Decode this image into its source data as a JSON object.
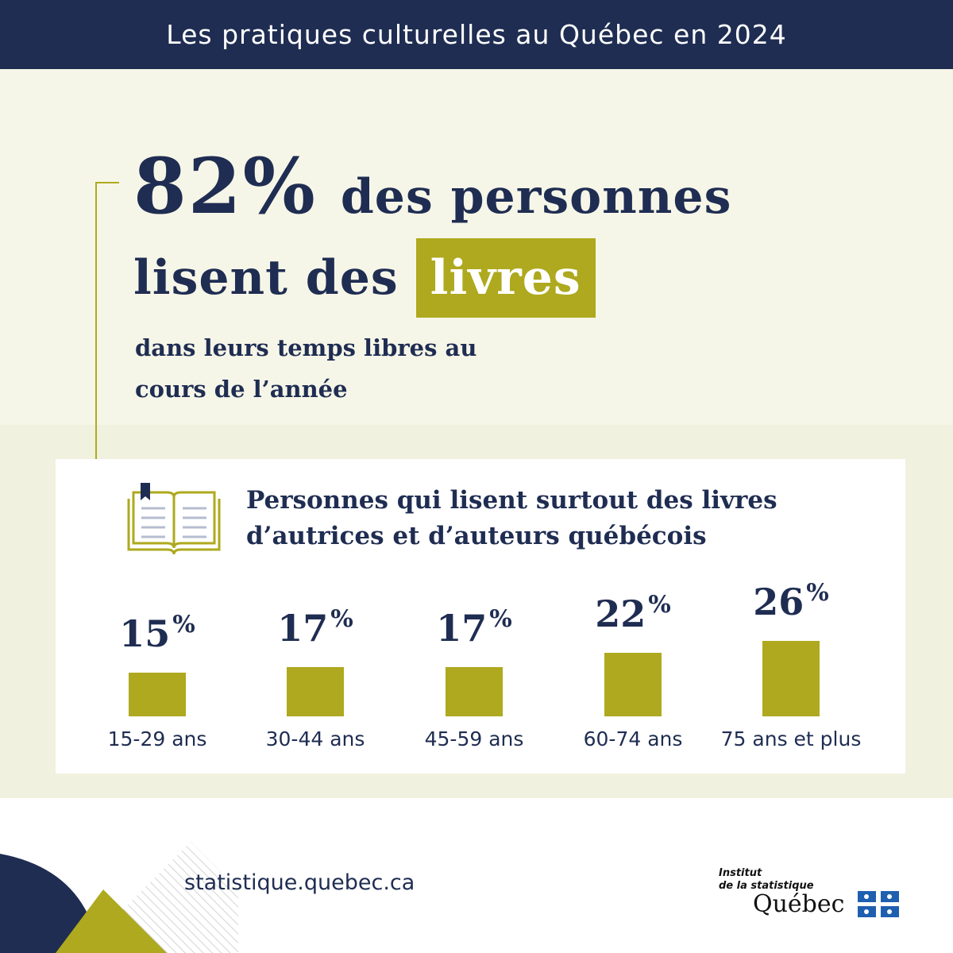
{
  "banner": {
    "title": "Les pratiques culturelles au Québec en 2024"
  },
  "hero": {
    "percent": "82%",
    "line1": "des personnes",
    "line2": "lisent des",
    "highlight": "livres",
    "sub_line1": "dans leurs temps libres au",
    "sub_line2": "cours de l’année"
  },
  "card": {
    "title_line1": "Personnes qui lisent surtout des livres",
    "title_line2": "d’autrices et d’auteurs québécois"
  },
  "chart_data": {
    "type": "bar",
    "title": "Personnes qui lisent surtout des livres d’autrices et d’auteurs québécois",
    "categories": [
      "15-29 ans",
      "30-44 ans",
      "45-59 ans",
      "60-74 ans",
      "75 ans et plus"
    ],
    "values": [
      15,
      17,
      17,
      22,
      26
    ],
    "value_labels": [
      "15",
      "17",
      "17",
      "22",
      "26"
    ],
    "unit": "%",
    "colors": {
      "bar": "#aea91e",
      "text": "#1f2d52"
    }
  },
  "footer": {
    "website": "statistique.quebec.ca",
    "logo_line1": "Institut",
    "logo_line2": "de la statistique",
    "logo_main": "Québec"
  },
  "colors": {
    "navy": "#1f2d52",
    "olive": "#aea91e",
    "cream": "#f6f6e8"
  }
}
